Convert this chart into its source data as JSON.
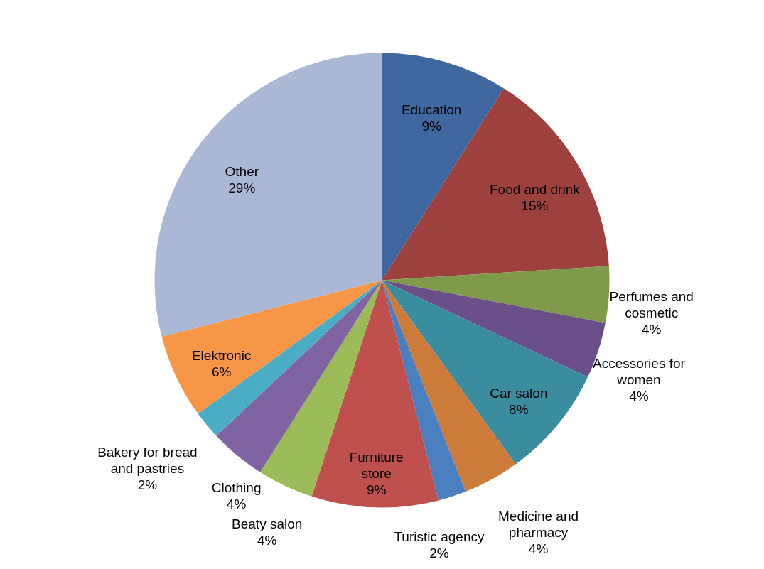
{
  "chart_data": {
    "type": "pie",
    "categories": [
      "Education",
      "Food and drink",
      "Perfumes and cosmetic",
      "Accessories for women",
      "Car salon",
      "Medicine and pharmacy",
      "Turistic agency",
      "Furniture store",
      "Beaty salon",
      "Clothing",
      "Bakery for bread and pastries",
      "Elektronic",
      "Other"
    ],
    "values": [
      9,
      15,
      4,
      4,
      8,
      4,
      2,
      9,
      4,
      4,
      2,
      6,
      29
    ],
    "value_labels": [
      "9%",
      "15%",
      "4%",
      "4%",
      "8%",
      "4%",
      "2%",
      "9%",
      "4%",
      "4%",
      "2%",
      "6%",
      "29%"
    ],
    "colors": [
      "#4068a0",
      "#9e413e",
      "#7f9a48",
      "#6a4f88",
      "#3c8ca0",
      "#cc7b38",
      "#4a7fc0",
      "#c0504d",
      "#9bbb59",
      "#8064a2",
      "#4bacc6",
      "#f79646",
      "#aab8d6"
    ]
  }
}
